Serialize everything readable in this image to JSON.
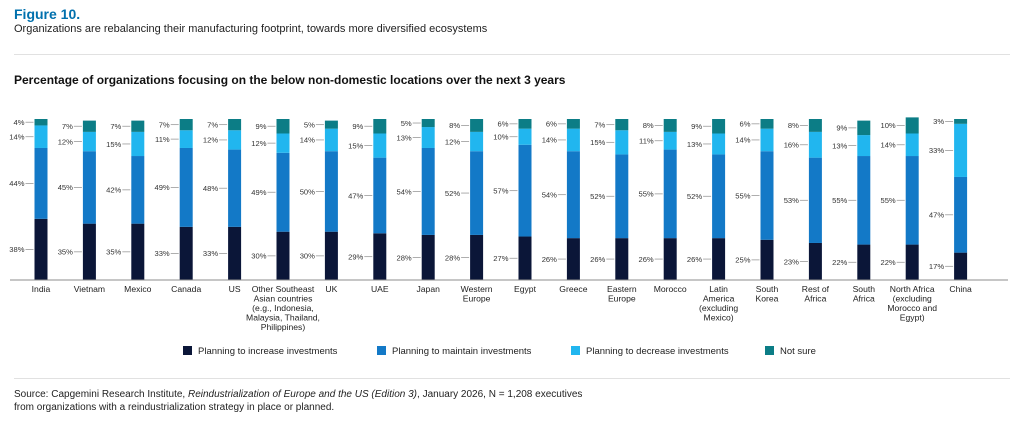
{
  "figure": {
    "label": "Figure 10.",
    "subtitle": "Organizations are rebalancing their manufacturing footprint, towards more diversified ecosystems"
  },
  "source": {
    "prefix": "Source: Capgemini Research Institute, ",
    "publication": "Reindustrialization of Europe and the US (Edition 3)",
    "suffix": ", January 2026, N = 1,208 executives",
    "line2": "from organizations with a reindustrialization strategy in place or planned."
  },
  "colors": {
    "increase": "#0b1638",
    "maintain": "#1379c7",
    "decrease": "#21b6ef",
    "not_sure": "#0c7d86"
  },
  "chart_data": {
    "type": "bar",
    "stacked": true,
    "orientation": "vertical",
    "title": "Percentage of organizations focusing on the below non-domestic locations over the next 3 years",
    "unit": "%",
    "ylim": [
      0,
      100
    ],
    "legend_position": "bottom",
    "categories": [
      [
        "India"
      ],
      [
        "Vietnam"
      ],
      [
        "Mexico"
      ],
      [
        "Canada"
      ],
      [
        "US"
      ],
      [
        "Other Southeast",
        "Asian countries",
        "(e.g., Indonesia,",
        "Malaysia, Thailand,",
        "Philippines)"
      ],
      [
        "UK"
      ],
      [
        "UAE"
      ],
      [
        "Japan"
      ],
      [
        "Western",
        "Europe"
      ],
      [
        "Egypt"
      ],
      [
        "Greece"
      ],
      [
        "Eastern",
        "Europe"
      ],
      [
        "Morocco"
      ],
      [
        "Latin",
        "America",
        "(excluding",
        "Mexico)"
      ],
      [
        "South",
        "Korea"
      ],
      [
        "Rest of",
        "Africa"
      ],
      [
        "South",
        "Africa"
      ],
      [
        "North Africa",
        "(excluding",
        "Morocco and",
        "Egypt)"
      ],
      [
        "China"
      ]
    ],
    "series": [
      {
        "name": "Planning to increase investments",
        "key": "increase",
        "values": [
          38,
          35,
          35,
          33,
          33,
          30,
          30,
          29,
          28,
          28,
          27,
          26,
          26,
          26,
          26,
          25,
          23,
          22,
          22,
          17
        ]
      },
      {
        "name": "Planning to maintain investments",
        "key": "maintain",
        "values": [
          44,
          45,
          42,
          49,
          48,
          49,
          50,
          47,
          54,
          52,
          57,
          54,
          52,
          55,
          52,
          55,
          53,
          55,
          55,
          47
        ]
      },
      {
        "name": "Planning to decrease investments",
        "key": "decrease",
        "values": [
          14,
          12,
          15,
          11,
          12,
          12,
          14,
          15,
          13,
          12,
          10,
          14,
          15,
          11,
          13,
          14,
          16,
          13,
          14,
          33
        ]
      },
      {
        "name": "Not sure",
        "key": "not_sure",
        "values": [
          4,
          7,
          7,
          7,
          7,
          9,
          5,
          9,
          5,
          8,
          6,
          6,
          7,
          8,
          9,
          6,
          8,
          9,
          10,
          3
        ]
      }
    ]
  }
}
